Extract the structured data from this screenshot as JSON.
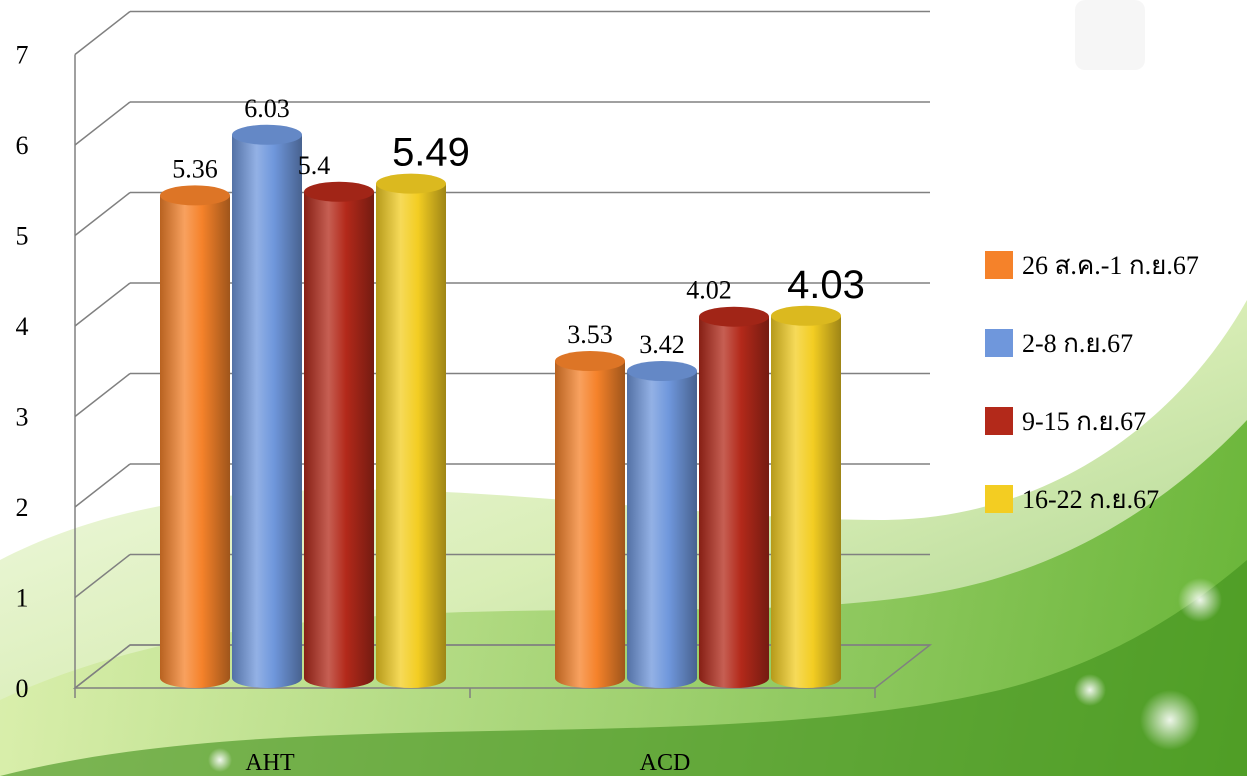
{
  "chart_data": {
    "type": "bar",
    "style": "3d-cylinder",
    "categories": [
      "AHT",
      "ACD"
    ],
    "series": [
      {
        "name": "26 ส.ค.-1 ก.ย.67",
        "values": [
          5.36,
          3.53
        ],
        "color": "#F5822A",
        "labels": [
          "5.36",
          "3.53"
        ]
      },
      {
        "name": "2-8 ก.ย.67",
        "values": [
          6.03,
          3.42
        ],
        "color": "#6F97DC",
        "labels": [
          "6.03",
          "3.42"
        ]
      },
      {
        "name": "9-15 ก.ย.67",
        "values": [
          5.4,
          4.02
        ],
        "color": "#B3291A",
        "labels": [
          "5.4",
          "4.02"
        ]
      },
      {
        "name": "16-22 ก.ย.67",
        "values": [
          5.49,
          4.03
        ],
        "color": "#F3CD22",
        "labels": [
          "5.49",
          "4.03"
        ]
      }
    ],
    "ylim": [
      0,
      7
    ],
    "yticks": [
      "0",
      "1",
      "2",
      "3",
      "4",
      "5",
      "6",
      "7"
    ],
    "grid": true,
    "legend_position": "right",
    "title": "",
    "xlabel": "",
    "ylabel": ""
  },
  "background": {
    "accent": "#6FB52C",
    "light": "#E6F3C4"
  }
}
